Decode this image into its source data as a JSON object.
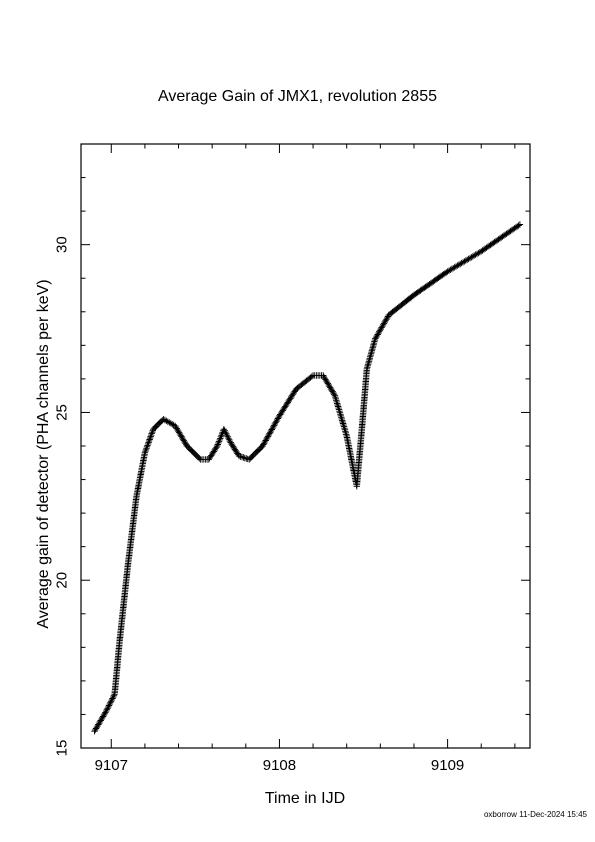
{
  "chart_data": {
    "type": "scatter",
    "title": "Average Gain of JMX1, revolution 2855",
    "xlabel": "Time in IJD",
    "ylabel": "Average gain of detector (PHA channels per keV)",
    "xlim": [
      9106.82,
      9109.49
    ],
    "ylim": [
      15,
      33
    ],
    "x_ticks": [
      9107,
      9108,
      9109
    ],
    "y_ticks": [
      15,
      20,
      25,
      30
    ],
    "x_tick_labels": [
      "9107",
      "9108",
      "9109"
    ],
    "y_tick_labels": [
      "15",
      "20",
      "25",
      "30"
    ],
    "marker": "plus",
    "grid": false,
    "legend": "none",
    "anchors": [
      [
        9106.9,
        15.5
      ],
      [
        9106.97,
        16.1
      ],
      [
        9107.02,
        16.6
      ],
      [
        9107.05,
        18.2
      ],
      [
        9107.1,
        20.5
      ],
      [
        9107.15,
        22.5
      ],
      [
        9107.2,
        23.8
      ],
      [
        9107.25,
        24.5
      ],
      [
        9107.31,
        24.8
      ],
      [
        9107.38,
        24.6
      ],
      [
        9107.45,
        24.0
      ],
      [
        9107.53,
        23.6
      ],
      [
        9107.58,
        23.6
      ],
      [
        9107.63,
        24.0
      ],
      [
        9107.67,
        24.5
      ],
      [
        9107.71,
        24.1
      ],
      [
        9107.76,
        23.7
      ],
      [
        9107.82,
        23.6
      ],
      [
        9107.9,
        24.0
      ],
      [
        9108.0,
        24.9
      ],
      [
        9108.1,
        25.7
      ],
      [
        9108.2,
        26.1
      ],
      [
        9108.26,
        26.1
      ],
      [
        9108.33,
        25.5
      ],
      [
        9108.4,
        24.3
      ],
      [
        9108.46,
        22.8
      ],
      [
        9108.49,
        24.5
      ],
      [
        9108.52,
        26.3
      ],
      [
        9108.57,
        27.2
      ],
      [
        9108.65,
        27.9
      ],
      [
        9108.8,
        28.5
      ],
      [
        9109.0,
        29.2
      ],
      [
        9109.2,
        29.8
      ],
      [
        9109.43,
        30.6
      ]
    ]
  },
  "footer": "oxborrow 11-Dec-2024 15:45"
}
